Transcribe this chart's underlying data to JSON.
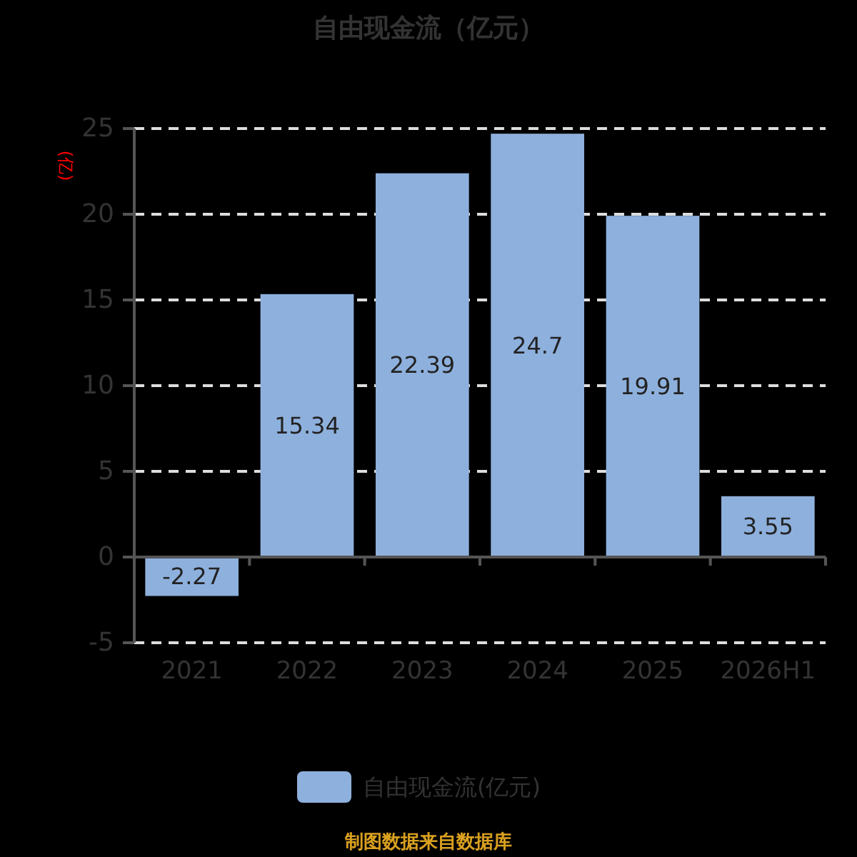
{
  "chart_data": {
    "type": "bar",
    "title": "自由现金流（亿元）",
    "ylabel": "(亿)",
    "categories": [
      "2021",
      "2022",
      "2023",
      "2024",
      "2025",
      "2026H1"
    ],
    "series": [
      {
        "name": "自由现金流(亿元)",
        "color": "#8eb0dd",
        "values": [
          -2.27,
          15.34,
          22.39,
          24.7,
          19.91,
          3.55
        ]
      }
    ],
    "ylim": [
      -5,
      25
    ],
    "yticks": [
      -5,
      0,
      5,
      10,
      15,
      20,
      25
    ],
    "grid": "y",
    "legend": "bottom",
    "data_labels": true,
    "annotations": [
      "制图数据来自数据库"
    ]
  }
}
